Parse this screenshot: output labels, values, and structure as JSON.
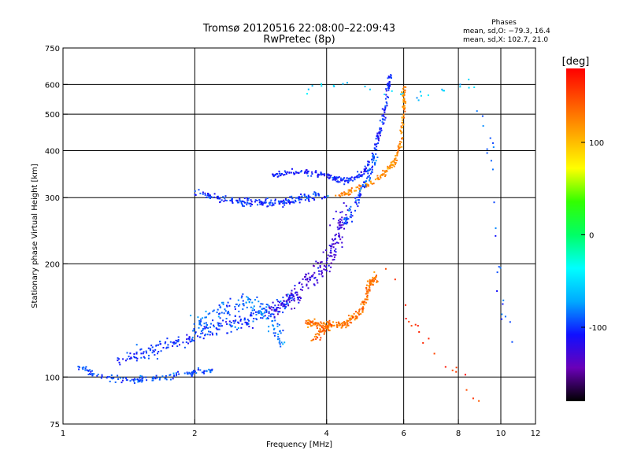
{
  "chart_data": {
    "type": "scatter",
    "title": "Tromsø 20120516 22:08:00–22:09:43",
    "subtitle": "RwPretec (8p)",
    "xlabel": "Frequency [MHz]",
    "ylabel": "Stationary phase Virtual Height [km]",
    "x_scale": "log",
    "y_scale": "log",
    "xlim": [
      1,
      12
    ],
    "ylim": [
      75,
      750
    ],
    "x_ticks": [
      1,
      2,
      4,
      6,
      8,
      10,
      12
    ],
    "y_ticks": [
      75,
      100,
      200,
      300,
      400,
      500,
      600,
      750
    ],
    "grid_x": [
      2,
      4,
      6,
      8,
      10
    ],
    "grid_y": [
      100,
      200,
      300,
      400,
      500,
      600
    ],
    "grid": true,
    "info_box": {
      "heading": "Phases",
      "line1": "mean, sd,O: −79.3, 16.4",
      "line2": "mean, sd,X: 102.7, 21.0"
    },
    "colorbar": {
      "label": "[deg]",
      "min": -180,
      "max": 180,
      "ticks": [
        100,
        0,
        -100
      ],
      "colormap": [
        "#000000",
        "#6a00b8",
        "#1010ff",
        "#00aaff",
        "#00ffff",
        "#00ff66",
        "#33ff00",
        "#ffff00",
        "#ffaa00",
        "#ff5500",
        "#ff0000"
      ]
    },
    "series": [
      {
        "trace": [
          [
            1.08,
            108
          ],
          [
            1.2,
            100
          ],
          [
            1.4,
            98
          ],
          [
            1.6,
            99
          ],
          [
            1.8,
            101
          ],
          [
            2.0,
            103
          ],
          [
            2.2,
            104
          ]
        ],
        "phase": -95,
        "spread": 0.03,
        "count": 140
      },
      {
        "trace": [
          [
            1.3,
            110
          ],
          [
            1.6,
            118
          ],
          [
            1.9,
            125
          ],
          [
            2.2,
            135
          ],
          [
            2.6,
            140
          ],
          [
            3.0,
            150
          ],
          [
            3.4,
            165
          ]
        ],
        "phase": -100,
        "spread": 0.07,
        "count": 260
      },
      {
        "trace": [
          [
            2.0,
            135
          ],
          [
            2.3,
            150
          ],
          [
            2.6,
            160
          ],
          [
            2.9,
            150
          ],
          [
            3.2,
            120
          ]
        ],
        "phase": -85,
        "spread": 0.08,
        "count": 140
      },
      {
        "trace": [
          [
            2.0,
            310
          ],
          [
            2.4,
            295
          ],
          [
            2.8,
            290
          ],
          [
            3.2,
            292
          ],
          [
            3.6,
            300
          ],
          [
            4.0,
            305
          ]
        ],
        "phase": -100,
        "spread": 0.035,
        "count": 200
      },
      {
        "trace": [
          [
            3.0,
            345
          ],
          [
            3.5,
            350
          ],
          [
            4.0,
            345
          ],
          [
            4.4,
            330
          ],
          [
            4.8,
            345
          ],
          [
            5.1,
            380
          ],
          [
            5.3,
            450
          ],
          [
            5.5,
            560
          ],
          [
            5.6,
            640
          ]
        ],
        "phase": -105,
        "spread": 0.03,
        "count": 260
      },
      {
        "trace": [
          [
            3.0,
            150
          ],
          [
            3.3,
            160
          ],
          [
            3.6,
            180
          ],
          [
            4.0,
            200
          ],
          [
            4.2,
            230
          ],
          [
            4.4,
            280
          ]
        ],
        "phase": -125,
        "spread": 0.08,
        "count": 200
      },
      {
        "trace": [
          [
            3.6,
            140
          ],
          [
            4.0,
            136
          ],
          [
            4.4,
            138
          ],
          [
            4.8,
            150
          ],
          [
            5.0,
            175
          ],
          [
            5.2,
            185
          ]
        ],
        "phase": 130,
        "spread": 0.035,
        "count": 220
      },
      {
        "trace": [
          [
            3.7,
            125
          ],
          [
            3.9,
            132
          ],
          [
            4.1,
            138
          ]
        ],
        "phase": 140,
        "spread": 0.04,
        "count": 45
      },
      {
        "trace": [
          [
            4.2,
            300
          ],
          [
            4.8,
            320
          ],
          [
            5.3,
            340
          ],
          [
            5.7,
            370
          ],
          [
            5.9,
            420
          ],
          [
            6.0,
            520
          ],
          [
            6.0,
            590
          ]
        ],
        "phase": 120,
        "spread": 0.025,
        "count": 190
      },
      {
        "trace": [
          [
            4.4,
            255
          ],
          [
            4.6,
            280
          ],
          [
            4.8,
            310
          ],
          [
            5.0,
            340
          ],
          [
            5.2,
            380
          ]
        ],
        "phase": -95,
        "spread": 0.04,
        "count": 90
      },
      {
        "trace": [
          [
            3.5,
            580
          ],
          [
            3.8,
            590
          ],
          [
            4.1,
            590
          ],
          [
            4.4,
            600
          ],
          [
            6.5,
            560
          ],
          [
            8.7,
            600
          ]
        ],
        "phase": -60,
        "spread": 0.05,
        "count": 28
      },
      {
        "trace": [
          [
            8.5,
            560
          ],
          [
            9.4,
            440
          ],
          [
            9.6,
            350
          ],
          [
            9.8,
            220
          ],
          [
            10.1,
            150
          ],
          [
            10.5,
            120
          ],
          [
            11.0,
            110
          ]
        ],
        "phase": -90,
        "spread": 0.05,
        "count": 24
      },
      {
        "trace": [
          [
            5.5,
            200
          ],
          [
            6.1,
            150
          ],
          [
            6.5,
            130
          ],
          [
            7.5,
            110
          ],
          [
            8.5,
            95
          ],
          [
            9.0,
            85
          ]
        ],
        "phase": 160,
        "spread": 0.06,
        "count": 20
      }
    ]
  }
}
